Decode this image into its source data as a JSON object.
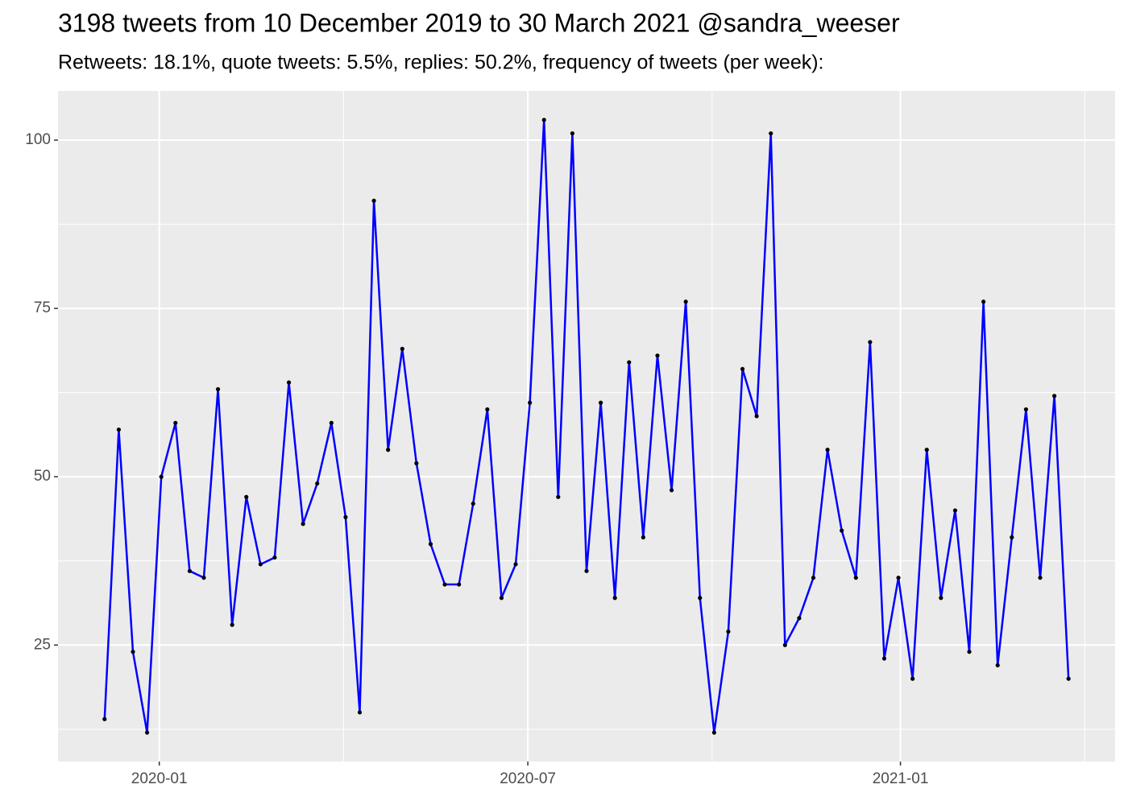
{
  "chart_data": {
    "type": "line",
    "title": "3198 tweets from 10 December 2019 to 30 March 2021 @sandra_weeser",
    "subtitle": "Retweets: 18.1%, quote tweets: 5.5%, replies: 50.2%, frequency of tweets (per week):",
    "x": [
      "2019-12-05",
      "2019-12-12",
      "2019-12-19",
      "2019-12-26",
      "2020-01-02",
      "2020-01-09",
      "2020-01-16",
      "2020-01-23",
      "2020-01-30",
      "2020-02-06",
      "2020-02-13",
      "2020-02-20",
      "2020-02-27",
      "2020-03-05",
      "2020-03-12",
      "2020-03-19",
      "2020-03-26",
      "2020-04-02",
      "2020-04-09",
      "2020-04-16",
      "2020-04-23",
      "2020-04-30",
      "2020-05-07",
      "2020-05-14",
      "2020-05-21",
      "2020-05-28",
      "2020-06-04",
      "2020-06-11",
      "2020-06-18",
      "2020-06-25",
      "2020-07-02",
      "2020-07-09",
      "2020-07-16",
      "2020-07-23",
      "2020-07-30",
      "2020-08-06",
      "2020-08-13",
      "2020-08-20",
      "2020-08-27",
      "2020-09-03",
      "2020-09-10",
      "2020-09-17",
      "2020-09-24",
      "2020-10-01",
      "2020-10-08",
      "2020-10-15",
      "2020-10-22",
      "2020-10-29",
      "2020-11-05",
      "2020-11-12",
      "2020-11-19",
      "2020-11-26",
      "2020-12-03",
      "2020-12-10",
      "2020-12-17",
      "2020-12-24",
      "2020-12-31",
      "2021-01-07",
      "2021-01-14",
      "2021-01-21",
      "2021-01-28",
      "2021-02-04",
      "2021-02-11",
      "2021-02-18",
      "2021-02-25",
      "2021-03-04",
      "2021-03-11",
      "2021-03-18",
      "2021-03-25"
    ],
    "series": [
      {
        "color": "#0000ff",
        "values": [
          14,
          57,
          24,
          12,
          50,
          58,
          36,
          35,
          63,
          28,
          47,
          37,
          38,
          64,
          43,
          49,
          58,
          44,
          15,
          91,
          54,
          69,
          52,
          40,
          34,
          34,
          46,
          60,
          32,
          37,
          61,
          103,
          47,
          101,
          36,
          61,
          32,
          67,
          41,
          68,
          48,
          76,
          32,
          12,
          27,
          66,
          59,
          101,
          25,
          29,
          35,
          54,
          42,
          35,
          70,
          23,
          35,
          20,
          54,
          32,
          45,
          24,
          76,
          22,
          41,
          60,
          35,
          62,
          20
        ]
      }
    ],
    "point_color": "#000000",
    "xlim": [
      "2019-11-12",
      "2021-04-17"
    ],
    "xticks": [
      {
        "value": "2020-01-01",
        "label": "2020-01"
      },
      {
        "value": "2020-07-01",
        "label": "2020-07"
      },
      {
        "value": "2021-01-01",
        "label": "2021-01"
      }
    ],
    "ylim": [
      7.7,
      107.3
    ],
    "yticks": [
      25,
      50,
      75,
      100
    ],
    "grid": true,
    "background": "#ebebeb"
  }
}
